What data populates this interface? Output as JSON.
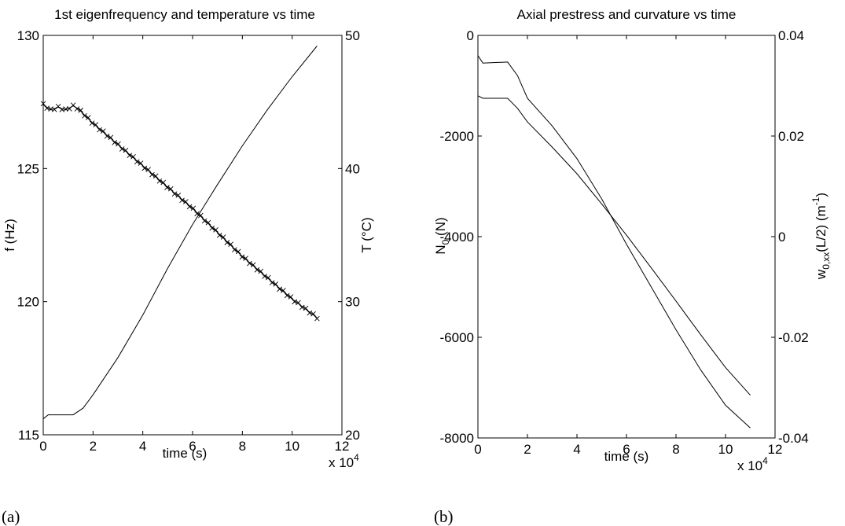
{
  "figure": {
    "panel_labels": [
      "(a)",
      "(b)"
    ]
  },
  "chart_data": [
    {
      "type": "line",
      "title": "1st eigenfrequency and temperature vs time",
      "xlabel": "time (s)",
      "x_multiplier": "x 10",
      "x_multiplier_exp": "4",
      "ylabel_left": "f (Hz)",
      "ylabel_right": "T (°C)",
      "xlim": [
        0,
        12
      ],
      "ylim_left": [
        115,
        130
      ],
      "ylim_right": [
        20,
        50
      ],
      "xticks": [
        "0",
        "2",
        "4",
        "6",
        "8",
        "10",
        "12"
      ],
      "yticks_left": [
        "115",
        "120",
        "125",
        "130"
      ],
      "yticks_right": [
        "20",
        "30",
        "40",
        "50"
      ],
      "grid": false,
      "series": [
        {
          "axis": "left",
          "style": "line+x-markers",
          "x": [
            0,
            0.3,
            0.6,
            0.9,
            1.2,
            1.4,
            2,
            3,
            4,
            5,
            6,
            7,
            8,
            9,
            10,
            11
          ],
          "values": [
            127.4,
            127.2,
            127.3,
            127.2,
            127.35,
            127.25,
            126.7,
            125.9,
            125.1,
            124.3,
            123.5,
            122.6,
            121.7,
            120.9,
            120.1,
            119.4
          ]
        },
        {
          "axis": "right",
          "style": "line",
          "x": [
            0,
            0.2,
            1.2,
            1.6,
            2,
            3,
            4,
            5,
            6,
            7,
            8,
            9,
            10,
            11
          ],
          "values": [
            21.2,
            21.5,
            21.5,
            22.0,
            23.0,
            25.8,
            29.0,
            32.5,
            35.8,
            38.8,
            41.7,
            44.4,
            46.9,
            49.2
          ]
        }
      ]
    },
    {
      "type": "line",
      "title": "Axial prestress and curvature vs time",
      "xlabel": "time (s)",
      "x_multiplier": "x 10",
      "x_multiplier_exp": "4",
      "ylabel_left_main": "N",
      "ylabel_left_sub": "0",
      "ylabel_left_tail": " (N)",
      "ylabel_right_main": "w",
      "ylabel_right_sub": "0,xx",
      "ylabel_right_mid": "(L/2)  (m",
      "ylabel_right_sup": "-1",
      "ylabel_right_tail": ")",
      "xlim": [
        0,
        12
      ],
      "ylim_left": [
        -8000,
        0
      ],
      "ylim_right": [
        -0.04,
        0.04
      ],
      "xticks": [
        "0",
        "2",
        "4",
        "6",
        "8",
        "10",
        "12"
      ],
      "yticks_left": [
        "-8000",
        "-6000",
        "-4000",
        "-2000",
        "0"
      ],
      "yticks_right": [
        "-0.04",
        "-0.02",
        "0",
        "0.02",
        "0.04"
      ],
      "grid": false,
      "series": [
        {
          "axis": "left",
          "style": "line",
          "x": [
            0,
            0.2,
            1.2,
            1.6,
            2,
            3,
            4,
            5,
            6,
            7,
            8,
            9,
            10,
            11
          ],
          "values": [
            -400,
            -550,
            -530,
            -800,
            -1250,
            -1800,
            -2450,
            -3250,
            -4150,
            -5000,
            -5850,
            -6650,
            -7350,
            -7800
          ]
        },
        {
          "axis": "right",
          "style": "line",
          "x": [
            0,
            0.2,
            1.2,
            1.6,
            2,
            3,
            4,
            5,
            6,
            7,
            8,
            9,
            10,
            11
          ],
          "values": [
            0.028,
            0.0275,
            0.0275,
            0.0255,
            0.0228,
            0.0178,
            0.0125,
            0.0065,
            0.0003,
            -0.0062,
            -0.0128,
            -0.0195,
            -0.026,
            -0.0315
          ]
        }
      ]
    }
  ]
}
